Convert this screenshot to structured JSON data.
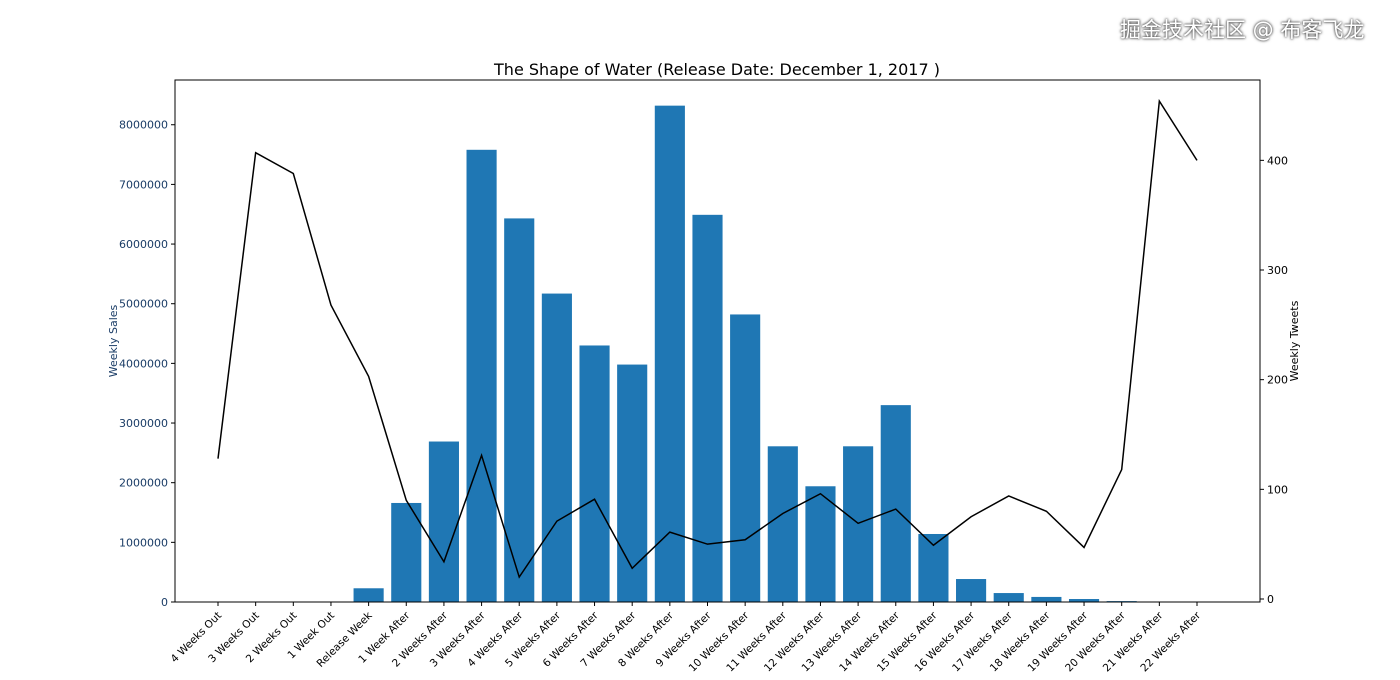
{
  "chart_data": {
    "type": "bar+line",
    "title": "The Shape of Water (Release Date:  December 1, 2017 )",
    "ylabel_left": "Weekly Sales",
    "ylabel_right": "Weekly Tweets",
    "xlabel": "",
    "categories": [
      "4 Weeks Out",
      "3 Weeks Out",
      "2 Weeks Out",
      "1 Week Out",
      "Release Week",
      "1 Week After",
      "2 Weeks After",
      "3 Weeks After",
      "4 Weeks After",
      "5 Weeks After",
      "6 Weeks After",
      "7 Weeks After",
      "8 Weeks After",
      "9 Weeks After",
      "10 Weeks After",
      "11 Weeks After",
      "12 Weeks After",
      "13 Weeks After",
      "14 Weeks After",
      "15 Weeks After",
      "16 Weeks After",
      "17 Weeks After",
      "18 Weeks After",
      "19 Weeks After",
      "20 Weeks After",
      "21 Weeks After",
      "22 Weeks After"
    ],
    "series": [
      {
        "axis": "left",
        "kind": "bar",
        "color": "#1f77b4",
        "values": [
          0,
          0,
          0,
          0,
          230000,
          1660000,
          2690000,
          7580000,
          6430000,
          5170000,
          4300000,
          3980000,
          8320000,
          6490000,
          4820000,
          2610000,
          1940000,
          2610000,
          3300000,
          1140000,
          385000,
          150000,
          85000,
          50000,
          15000,
          5000,
          0
        ]
      },
      {
        "axis": "right",
        "kind": "line",
        "color": "#000000",
        "values": [
          128,
          407,
          388,
          268,
          203,
          90,
          34,
          131,
          20,
          71,
          91,
          28,
          61,
          50,
          54,
          78,
          96,
          69,
          82,
          49,
          75,
          94,
          80,
          47,
          118,
          454,
          400
        ]
      }
    ],
    "ylim_left": [
      0,
      8750000
    ],
    "yticks_left": [
      "0",
      "1000000",
      "2000000",
      "3000000",
      "4000000",
      "5000000",
      "6000000",
      "7000000",
      "8000000"
    ],
    "ylim_right": [
      0,
      476
    ],
    "yticks_right": [
      "0",
      "100",
      "200",
      "300",
      "400"
    ],
    "left_axis_color": "#1a3c66",
    "grid": false
  },
  "watermark": "掘金技术社区 @ 布客飞龙"
}
